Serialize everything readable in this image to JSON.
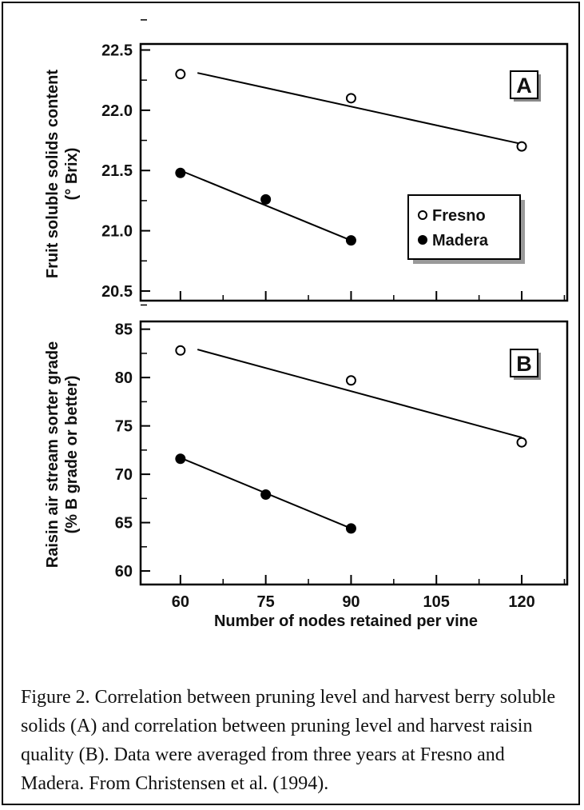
{
  "chart_data": [
    {
      "type": "scatter",
      "panel_label": "A",
      "ylabel_line1": "Fruit soluble solids content",
      "ylabel_line2": "(° Brix)",
      "xlim": [
        53,
        128
      ],
      "ylim": [
        20.42,
        22.55
      ],
      "yticks": [
        20.5,
        21.0,
        21.5,
        22.0,
        22.5
      ],
      "ytick_labels": [
        "20.5",
        "21.0",
        "21.5",
        "22.0",
        "22.5"
      ],
      "legend": {
        "placement": "center-right",
        "entries": [
          {
            "name": "Fresno",
            "marker": "open-circle"
          },
          {
            "name": "Madera",
            "marker": "filled-circle"
          }
        ]
      },
      "series": [
        {
          "name": "Fresno",
          "marker": "open",
          "points": [
            {
              "x": 60,
              "y": 22.3
            },
            {
              "x": 90,
              "y": 22.1
            },
            {
              "x": 120,
              "y": 21.7
            }
          ],
          "fit": [
            {
              "x": 63,
              "y": 22.31
            },
            {
              "x": 120,
              "y": 21.72
            }
          ]
        },
        {
          "name": "Madera",
          "marker": "filled",
          "points": [
            {
              "x": 60,
              "y": 21.48
            },
            {
              "x": 75,
              "y": 21.26
            },
            {
              "x": 90,
              "y": 20.92
            }
          ],
          "fit": [
            {
              "x": 60,
              "y": 21.5
            },
            {
              "x": 90,
              "y": 20.92
            }
          ]
        }
      ]
    },
    {
      "type": "scatter",
      "panel_label": "B",
      "ylabel_line1": "Raisin air stream sorter grade",
      "ylabel_line2": "(% B grade or better)",
      "xlabel": "Number of nodes retained per vine",
      "xlim": [
        53,
        128
      ],
      "ylim": [
        58.6,
        85.8
      ],
      "xticks": [
        60,
        75,
        90,
        105,
        120
      ],
      "xtick_labels": [
        "60",
        "75",
        "90",
        "105",
        "120"
      ],
      "yticks": [
        60,
        65,
        70,
        75,
        80,
        85
      ],
      "ytick_labels": [
        "60",
        "65",
        "70",
        "75",
        "80",
        "85"
      ],
      "series": [
        {
          "name": "Fresno",
          "marker": "open",
          "points": [
            {
              "x": 60,
              "y": 82.8
            },
            {
              "x": 90,
              "y": 79.7
            },
            {
              "x": 120,
              "y": 73.3
            }
          ],
          "fit": [
            {
              "x": 63,
              "y": 82.9
            },
            {
              "x": 120,
              "y": 73.8
            }
          ]
        },
        {
          "name": "Madera",
          "marker": "filled",
          "points": [
            {
              "x": 60,
              "y": 71.6
            },
            {
              "x": 75,
              "y": 67.9
            },
            {
              "x": 90,
              "y": 64.4
            }
          ],
          "fit": [
            {
              "x": 60,
              "y": 71.7
            },
            {
              "x": 90,
              "y": 64.4
            }
          ]
        }
      ]
    }
  ],
  "caption": "Figure 2. Correlation between pruning level and harvest berry soluble solids (A) and correlation between pruning level and harvest raisin quality (B). Data were averaged from three years at Fresno and Madera. From Christensen et al. (1994)."
}
